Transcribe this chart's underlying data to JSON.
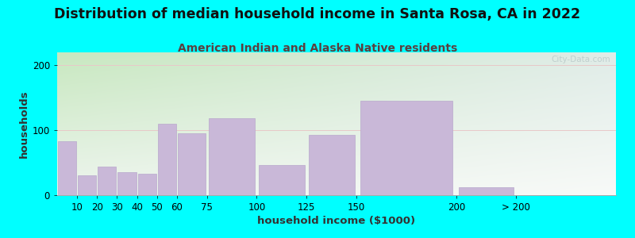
{
  "title": "Distribution of median household income in Santa Rosa, CA in 2022",
  "subtitle": "American Indian and Alaska Native residents",
  "xlabel": "household income ($1000)",
  "ylabel": "households",
  "background_outer": "#00FFFF",
  "bar_color": "#C9B8D8",
  "bar_edge_color": "#B8A8CC",
  "plot_bg_left": "#D8EDD0",
  "plot_bg_right": "#E8F0EC",
  "plot_bg_top": "#D0E8D0",
  "plot_bg_bottom": "#F0F5F5",
  "categories": [
    "10",
    "20",
    "30",
    "40",
    "50",
    "60",
    "75",
    "100",
    "125",
    "150",
    "200",
    "> 200"
  ],
  "values": [
    83,
    31,
    44,
    36,
    33,
    110,
    95,
    118,
    47,
    93,
    145,
    12
  ],
  "bin_edges": [
    0,
    10,
    20,
    30,
    40,
    50,
    60,
    75,
    100,
    125,
    150,
    200,
    230,
    280
  ],
  "ylim": [
    0,
    220
  ],
  "yticks": [
    0,
    100,
    200
  ],
  "title_fontsize": 12.5,
  "subtitle_fontsize": 10,
  "axis_label_fontsize": 9.5,
  "tick_fontsize": 8.5,
  "watermark_text": "City-Data.com"
}
